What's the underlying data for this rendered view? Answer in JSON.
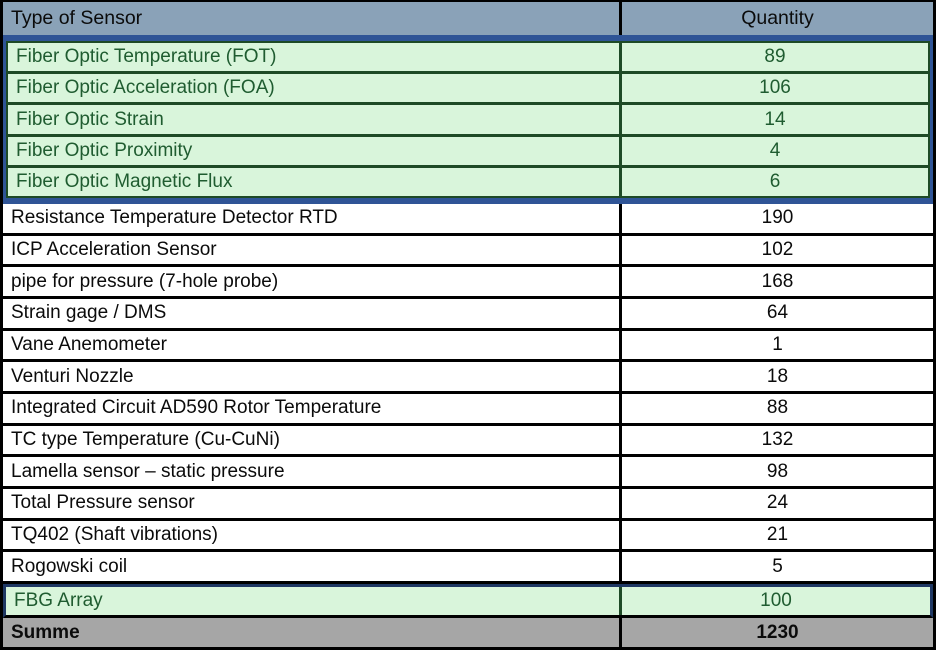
{
  "table": {
    "header": {
      "type": "Type of Sensor",
      "quantity": "Quantity"
    },
    "fiber_rows": [
      {
        "type": "Fiber Optic Temperature (FOT)",
        "qty": "89"
      },
      {
        "type": "Fiber Optic Acceleration (FOA)",
        "qty": "106"
      },
      {
        "type": "Fiber Optic Strain",
        "qty": "14"
      },
      {
        "type": "Fiber Optic Proximity",
        "qty": "4"
      },
      {
        "type": "Fiber Optic Magnetic Flux",
        "qty": "6"
      }
    ],
    "rows": [
      {
        "type": "Resistance Temperature Detector RTD",
        "qty": "190"
      },
      {
        "type": "ICP Acceleration Sensor",
        "qty": "102"
      },
      {
        "type": "pipe for pressure (7-hole probe)",
        "qty": "168"
      },
      {
        "type": "Strain gage / DMS",
        "qty": "64"
      },
      {
        "type": "Vane Anemometer",
        "qty": "1"
      },
      {
        "type": "Venturi Nozzle",
        "qty": "18"
      },
      {
        "type": "Integrated Circuit AD590 Rotor Temperature",
        "qty": "88"
      },
      {
        "type": "TC type Temperature (Cu-CuNi)",
        "qty": "132"
      },
      {
        "type": "Lamella sensor – static pressure",
        "qty": "98"
      },
      {
        "type": "Total Pressure sensor",
        "qty": "24"
      },
      {
        "type": "TQ402 (Shaft vibrations)",
        "qty": "21"
      },
      {
        "type": "Rogowski coil",
        "qty": "5"
      }
    ],
    "fbg_row": {
      "type": "FBG Array",
      "qty": "100"
    },
    "total_row": {
      "type": "Summe",
      "qty": "1230"
    }
  },
  "colors": {
    "header_bg": "#8aa2b8",
    "highlight_frame_blue": "#2f5496",
    "highlight_bg_green": "#d9f5db",
    "highlight_border_green": "#1e4a26",
    "highlight_text_green": "#1f5c30",
    "fbg_frame_navy": "#1f3864",
    "total_bg_gray": "#a6a6a6",
    "grid_black": "#000000"
  }
}
